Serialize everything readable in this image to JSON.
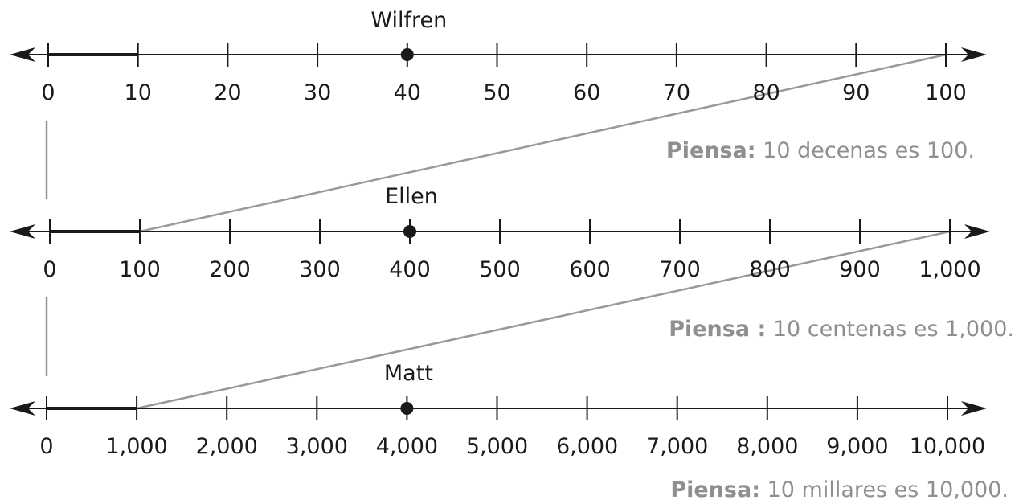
{
  "colors": {
    "line": "#1a1a1a",
    "guide": "#999999",
    "note": "#8f8f8f"
  },
  "lines": [
    {
      "person": "Wilfren",
      "ticks": [
        "0",
        "10",
        "20",
        "30",
        "40",
        "50",
        "60",
        "70",
        "80",
        "90",
        "100"
      ],
      "point_index": 4,
      "bold_to_index": 1,
      "note": {
        "bold": "Piensa:",
        "text": " 10 decenas es 100."
      }
    },
    {
      "person": "Ellen",
      "ticks": [
        "0",
        "100",
        "200",
        "300",
        "400",
        "500",
        "600",
        "700",
        "800",
        "900",
        "1,000"
      ],
      "point_index": 4,
      "bold_to_index": 1,
      "note": {
        "bold": "Piensa :",
        "text": " 10 centenas es 1,000."
      }
    },
    {
      "person": "Matt",
      "ticks": [
        "0",
        "1,000",
        "2,000",
        "3,000",
        "4,000",
        "5,000",
        "6,000",
        "7,000",
        "8,000",
        "9,000",
        "10,000"
      ],
      "point_index": 4,
      "bold_to_index": 1,
      "note": {
        "bold": "Piensa:",
        "text": " 10 millares es 10,000."
      }
    }
  ]
}
